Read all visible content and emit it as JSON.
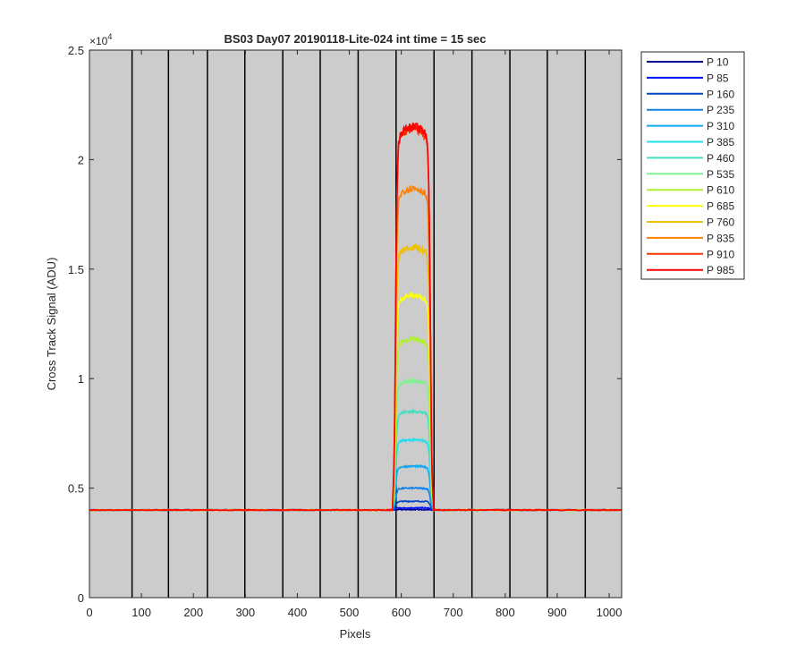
{
  "chart_data": {
    "type": "line",
    "title": "BS03 Day07 20190118-Lite-024 int time = 15 sec",
    "xlabel": "Pixels",
    "ylabel": "Cross Track Signal (ADU)",
    "y_exponent_label": "×10",
    "y_exponent": "4",
    "xlim": [
      0,
      1024
    ],
    "ylim": [
      0,
      25000
    ],
    "x_ticks": [
      0,
      100,
      200,
      300,
      400,
      500,
      600,
      700,
      800,
      900,
      1000
    ],
    "y_ticks": [
      0,
      5000,
      10000,
      15000,
      20000,
      25000
    ],
    "y_tick_labels": [
      "0",
      "0.5",
      "1",
      "1.5",
      "2",
      "2.5"
    ],
    "vertical_lines_x": [
      82,
      152,
      227,
      299,
      372,
      444,
      517,
      590,
      663,
      736,
      809,
      881,
      954
    ],
    "background": "#cccccc",
    "grid": false,
    "legend_position": "outside-right",
    "baseline": 4000,
    "plateau_x_range": [
      587,
      658
    ],
    "series": [
      {
        "name": "P 10",
        "color": "#00008f",
        "peak": 4020
      },
      {
        "name": "P 85",
        "color": "#0010ff",
        "peak": 4100
      },
      {
        "name": "P 160",
        "color": "#0045c8",
        "peak": 4400
      },
      {
        "name": "P 235",
        "color": "#1080e8",
        "peak": 5000
      },
      {
        "name": "P 310",
        "color": "#10a8f0",
        "peak": 6000
      },
      {
        "name": "P 385",
        "color": "#20e0f0",
        "peak": 7200
      },
      {
        "name": "P 460",
        "color": "#40e0c0",
        "peak": 8500
      },
      {
        "name": "P 535",
        "color": "#80f090",
        "peak": 9900
      },
      {
        "name": "P 610",
        "color": "#b0f030",
        "peak": 11800
      },
      {
        "name": "P 685",
        "color": "#ffff00",
        "peak": 13800
      },
      {
        "name": "P 760",
        "color": "#f0c000",
        "peak": 16000
      },
      {
        "name": "P 835",
        "color": "#ff8000",
        "peak": 18700
      },
      {
        "name": "P 910",
        "color": "#ff3000",
        "peak": 21400
      },
      {
        "name": "P 985",
        "color": "#ff0000",
        "peak": 21500
      }
    ]
  }
}
